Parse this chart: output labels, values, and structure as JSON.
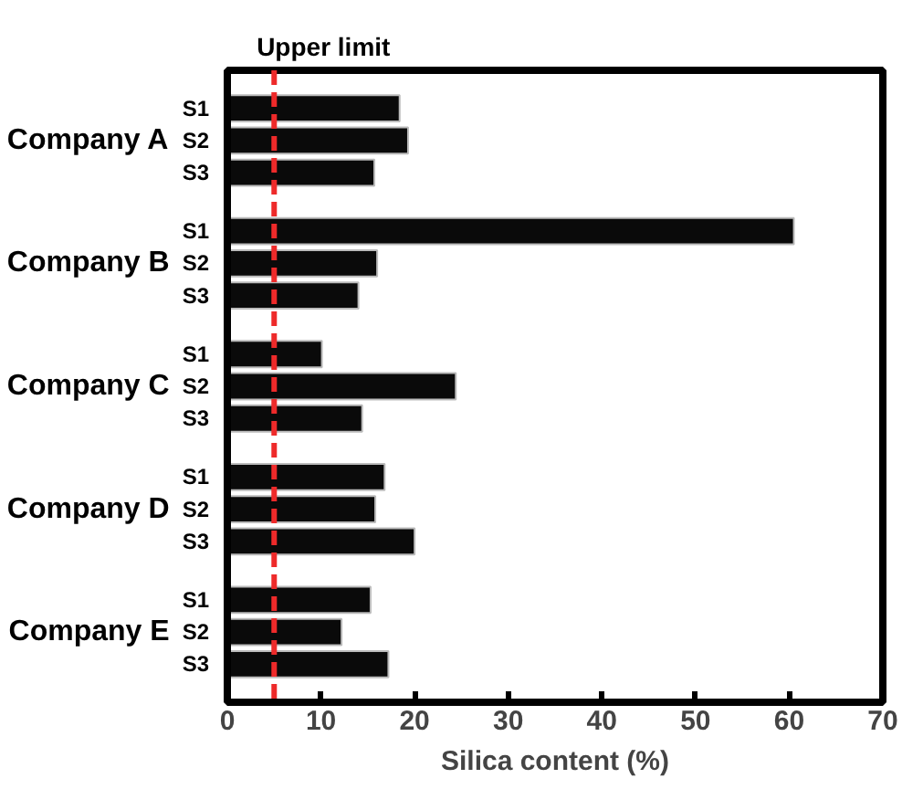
{
  "chart_data": {
    "type": "bar",
    "orientation": "horizontal",
    "xlabel": "Silica content (%)",
    "categories": [
      "S1",
      "S2",
      "S3",
      "S1",
      "S2",
      "S3",
      "S1",
      "S2",
      "S3",
      "S1",
      "S2",
      "S3",
      "S1",
      "S2",
      "S3"
    ],
    "values": [
      18.4,
      19.3,
      15.7,
      60.5,
      16.0,
      14.0,
      10.1,
      24.4,
      14.4,
      16.8,
      15.8,
      20.0,
      15.3,
      12.2,
      17.2
    ],
    "color": "#0a0a0a",
    "annotations": [
      "Company A",
      "Company B",
      "Company C",
      "Company D",
      "Company E"
    ],
    "ref_lines": [
      {
        "axis": "x",
        "value": 5,
        "label": "Upper limit",
        "color": "#ee2a2a",
        "line_style": "dashed"
      }
    ],
    "xlim": [
      0,
      70
    ],
    "xticks": [
      0,
      10,
      20,
      30,
      40,
      50,
      60,
      70
    ],
    "grid": false
  }
}
